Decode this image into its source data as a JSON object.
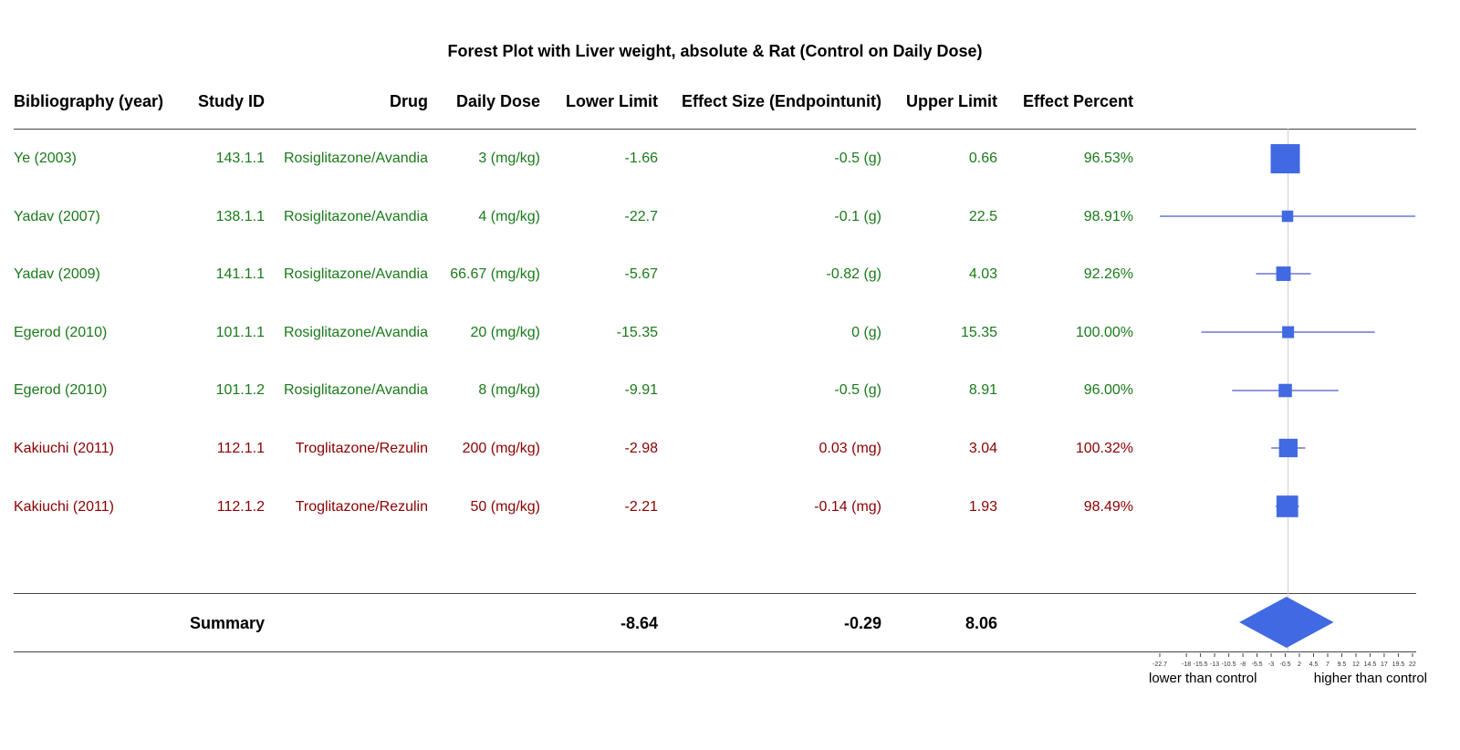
{
  "title": "Forest Plot with Liver weight, absolute & Rat (Control on Daily Dose)",
  "headers": {
    "bibliography": "Bibliography (year)",
    "study_id": "Study ID",
    "drug": "Drug",
    "daily_dose": "Daily Dose",
    "lower_limit": "Lower Limit",
    "effect_size": "Effect Size (Endpointunit)",
    "upper_limit": "Upper Limit",
    "effect_percent": "Effect Percent"
  },
  "colors": {
    "rosiglitazone": "#1a7a1a",
    "troglitazone": "#8b0000",
    "marker": "#4169e1",
    "ci_line": "#2233bb",
    "zero_line": "#cccccc"
  },
  "rows": [
    {
      "bib": "Ye (2003)",
      "study": "143.1.1",
      "drug": "Rosiglitazone/Avandia",
      "dose": "3 (mg/kg)",
      "lower": "-1.66",
      "effect": "-0.5 (g)",
      "upper": "0.66",
      "percent": "96.53%",
      "group": "rosiglitazone"
    },
    {
      "bib": "Yadav (2007)",
      "study": "138.1.1",
      "drug": "Rosiglitazone/Avandia",
      "dose": "4 (mg/kg)",
      "lower": "-22.7",
      "effect": "-0.1 (g)",
      "upper": "22.5",
      "percent": "98.91%",
      "group": "rosiglitazone"
    },
    {
      "bib": "Yadav (2009)",
      "study": "141.1.1",
      "drug": "Rosiglitazone/Avandia",
      "dose": "66.67 (mg/kg)",
      "lower": "-5.67",
      "effect": "-0.82 (g)",
      "upper": "4.03",
      "percent": "92.26%",
      "group": "rosiglitazone"
    },
    {
      "bib": "Egerod (2010)",
      "study": "101.1.1",
      "drug": "Rosiglitazone/Avandia",
      "dose": "20 (mg/kg)",
      "lower": "-15.35",
      "effect": "0 (g)",
      "upper": "15.35",
      "percent": "100.00%",
      "group": "rosiglitazone"
    },
    {
      "bib": "Egerod (2010)",
      "study": "101.1.2",
      "drug": "Rosiglitazone/Avandia",
      "dose": "8 (mg/kg)",
      "lower": "-9.91",
      "effect": "-0.5 (g)",
      "upper": "8.91",
      "percent": "96.00%",
      "group": "rosiglitazone"
    },
    {
      "bib": "Kakiuchi (2011)",
      "study": "112.1.1",
      "drug": "Troglitazone/Rezulin",
      "dose": "200 (mg/kg)",
      "lower": "-2.98",
      "effect": "0.03 (mg)",
      "upper": "3.04",
      "percent": "100.32%",
      "group": "troglitazone"
    },
    {
      "bib": "Kakiuchi (2011)",
      "study": "112.1.2",
      "drug": "Troglitazone/Rezulin",
      "dose": "50 (mg/kg)",
      "lower": "-2.21",
      "effect": "-0.14 (mg)",
      "upper": "1.93",
      "percent": "98.49%",
      "group": "troglitazone"
    }
  ],
  "summary": {
    "label": "Summary",
    "lower": "-8.64",
    "effect": "-0.29",
    "upper": "8.06"
  },
  "chart_data": {
    "type": "forest",
    "x_ticks": [
      "-22.7",
      "-18",
      "-15.5",
      "-13",
      "-10.5",
      "-8",
      "-5.5",
      "-3",
      "-0.5",
      "2",
      "4.5",
      "7",
      "9.5",
      "12",
      "14.5",
      "17",
      "19.5",
      "22"
    ],
    "xlim": [
      -22.7,
      22.5
    ],
    "reference_line": 0,
    "left_label": "lower than control",
    "right_label": "higher than control",
    "points": [
      {
        "study": "143.1.1",
        "effect": -0.5,
        "lower": -1.66,
        "upper": 0.66,
        "weight": 1.0
      },
      {
        "study": "138.1.1",
        "effect": -0.1,
        "lower": -22.7,
        "upper": 22.5,
        "weight": 0.25
      },
      {
        "study": "141.1.1",
        "effect": -0.82,
        "lower": -5.67,
        "upper": 4.03,
        "weight": 0.38
      },
      {
        "study": "101.1.1",
        "effect": 0,
        "lower": -15.35,
        "upper": 15.35,
        "weight": 0.27
      },
      {
        "study": "101.1.2",
        "effect": -0.5,
        "lower": -9.91,
        "upper": 8.91,
        "weight": 0.33
      },
      {
        "study": "112.1.1",
        "effect": 0.03,
        "lower": -2.98,
        "upper": 3.04,
        "weight": 0.55
      },
      {
        "study": "112.1.2",
        "effect": -0.14,
        "lower": -2.21,
        "upper": 1.93,
        "weight": 0.68
      }
    ],
    "summary": {
      "effect": -0.29,
      "lower": -8.64,
      "upper": 8.06
    }
  }
}
